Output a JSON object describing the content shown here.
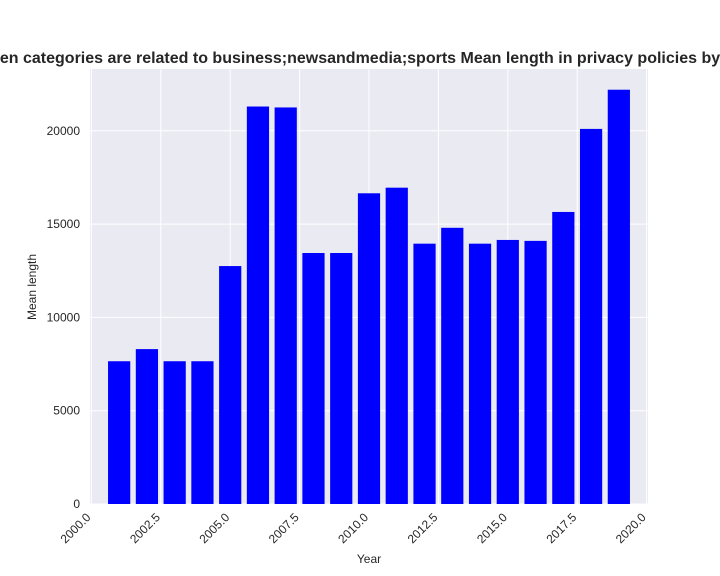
{
  "chart_data": {
    "type": "bar",
    "title": "Mean length in privacy policies by year when categories are related to business;newsandmedia;sports",
    "title_visible": "en categories are related to business;newsandmedia;sports Mean length in privacy policies by",
    "xlabel": "Year",
    "ylabel": "Mean length",
    "x": [
      2001,
      2002,
      2003,
      2004,
      2005,
      2006,
      2007,
      2008,
      2009,
      2010,
      2011,
      2012,
      2013,
      2014,
      2015,
      2016,
      2017,
      2018,
      2019
    ],
    "values": [
      7650,
      8300,
      7650,
      7650,
      12750,
      21300,
      21250,
      13450,
      13450,
      16650,
      16950,
      13950,
      14800,
      13950,
      14150,
      14100,
      15650,
      20100,
      22200
    ],
    "xlim": [
      1999.95,
      2020.05
    ],
    "ylim": [
      0,
      23310
    ],
    "xticks": [
      2000.0,
      2002.5,
      2005.0,
      2007.5,
      2010.0,
      2012.5,
      2015.0,
      2017.5,
      2020.0
    ],
    "xtick_labels": [
      "2000.0",
      "2002.5",
      "2005.0",
      "2007.5",
      "2010.0",
      "2012.5",
      "2015.0",
      "2017.5",
      "2020.0"
    ],
    "yticks": [
      0,
      5000,
      10000,
      15000,
      20000
    ],
    "ytick_labels": [
      "0",
      "5000",
      "10000",
      "15000",
      "20000"
    ],
    "bar_width": 0.8,
    "bar_color": "#0000ff",
    "background_color": "#eaeaf2",
    "grid_color": "#ffffff",
    "grid": true,
    "legend": "none"
  }
}
